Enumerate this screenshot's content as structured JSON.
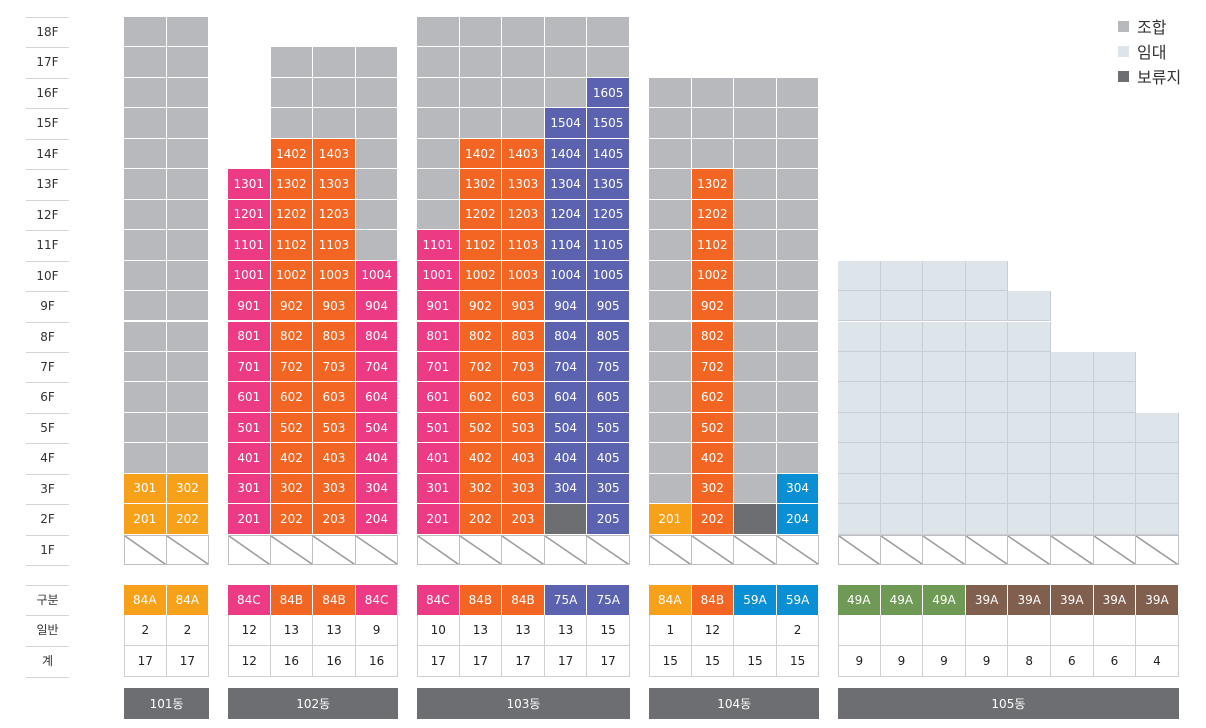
{
  "floors": [
    "18F",
    "17F",
    "16F",
    "15F",
    "14F",
    "13F",
    "12F",
    "11F",
    "10F",
    "9F",
    "8F",
    "7F",
    "6F",
    "5F",
    "4F",
    "3F",
    "2F",
    "1F"
  ],
  "row_labels": {
    "type": "구분",
    "general": "일반",
    "total": "계"
  },
  "legend": [
    {
      "label": "조합",
      "color": "#b8b9bd"
    },
    {
      "label": "임대",
      "color": "#dde4ea"
    },
    {
      "label": "보류지",
      "color": "#6d6e72"
    }
  ],
  "type_colors": {
    "84A": "#f7a11a",
    "84B": "#f26522",
    "84C": "#ec3a85",
    "75A": "#5b63b0",
    "59A": "#0a8ed4",
    "49A": "#6f9a56",
    "39A": "#805f4e",
    "union": "#b8b9bd",
    "lease": "#dde4ea",
    "reserve": "#6d6e72"
  },
  "buildings": [
    {
      "name": "101동",
      "columns": [
        {
          "top": 18,
          "cells": {
            "3": {
              "t": "84A",
              "label": "301"
            },
            "2": {
              "t": "84A",
              "label": "201"
            }
          },
          "default": "union",
          "type": "84A",
          "general": "2",
          "total": "17"
        },
        {
          "top": 18,
          "cells": {
            "3": {
              "t": "84A",
              "label": "302"
            },
            "2": {
              "t": "84A",
              "label": "202"
            }
          },
          "default": "union",
          "type": "84A",
          "general": "2",
          "total": "17"
        }
      ]
    },
    {
      "name": "102동",
      "columns": [
        {
          "top": 13,
          "default": "84C",
          "type": "84C",
          "general": "12",
          "total": "12",
          "labels": {
            "13": "1301",
            "12": "1201",
            "11": "1101",
            "10": "1001",
            "9": "901",
            "8": "801",
            "7": "701",
            "6": "601",
            "5": "501",
            "4": "401",
            "3": "301",
            "2": "201"
          }
        },
        {
          "top": 17,
          "default": "84B",
          "type": "84B",
          "general": "13",
          "total": "16",
          "union_floors": [
            15,
            16,
            17
          ],
          "labels": {
            "14": "1402",
            "13": "1302",
            "12": "1202",
            "11": "1102",
            "10": "1002",
            "9": "902",
            "8": "802",
            "7": "702",
            "6": "602",
            "5": "502",
            "4": "402",
            "3": "302",
            "2": "202"
          }
        },
        {
          "top": 17,
          "default": "84B",
          "type": "84B",
          "general": "13",
          "total": "16",
          "union_floors": [
            15,
            16,
            17
          ],
          "labels": {
            "14": "1403",
            "13": "1303",
            "12": "1203",
            "11": "1103",
            "10": "1003",
            "9": "903",
            "8": "803",
            "7": "703",
            "6": "603",
            "5": "503",
            "4": "403",
            "3": "303",
            "2": "203"
          }
        },
        {
          "top": 17,
          "default": "84C",
          "type": "84C",
          "general": "9",
          "total": "16",
          "union_floors": [
            11,
            12,
            13,
            14,
            15,
            16,
            17
          ],
          "labels": {
            "10": "1004",
            "9": "904",
            "8": "804",
            "7": "704",
            "6": "604",
            "5": "504",
            "4": "404",
            "3": "304",
            "2": "204"
          }
        }
      ]
    },
    {
      "name": "103동",
      "columns": [
        {
          "top": 18,
          "default": "84C",
          "type": "84C",
          "general": "10",
          "total": "17",
          "union_floors": [
            12,
            13,
            14,
            15,
            16,
            17,
            18
          ],
          "labels": {
            "11": "1101",
            "10": "1001",
            "9": "901",
            "8": "801",
            "7": "701",
            "6": "601",
            "5": "501",
            "4": "401",
            "3": "301",
            "2": "201"
          }
        },
        {
          "top": 18,
          "default": "84B",
          "type": "84B",
          "general": "13",
          "total": "17",
          "union_floors": [
            15,
            16,
            17,
            18
          ],
          "labels": {
            "14": "1402",
            "13": "1302",
            "12": "1202",
            "11": "1102",
            "10": "1002",
            "9": "902",
            "8": "802",
            "7": "702",
            "6": "602",
            "5": "502",
            "4": "402",
            "3": "302",
            "2": "202"
          }
        },
        {
          "top": 18,
          "default": "84B",
          "type": "84B",
          "general": "13",
          "total": "17",
          "union_floors": [
            15,
            16,
            17,
            18
          ],
          "labels": {
            "14": "1403",
            "13": "1303",
            "12": "1203",
            "11": "1103",
            "10": "1003",
            "9": "903",
            "8": "803",
            "7": "703",
            "6": "603",
            "5": "503",
            "4": "403",
            "3": "303",
            "2": "203"
          }
        },
        {
          "top": 18,
          "default": "75A",
          "type": "75A",
          "general": "13",
          "total": "17",
          "union_floors": [
            16,
            17,
            18
          ],
          "reserve_floors": [
            2
          ],
          "labels": {
            "15": "1504",
            "14": "1404",
            "13": "1304",
            "12": "1204",
            "11": "1104",
            "10": "1004",
            "9": "904",
            "8": "804",
            "7": "704",
            "6": "604",
            "5": "504",
            "4": "404",
            "3": "304"
          }
        },
        {
          "top": 18,
          "default": "75A",
          "type": "75A",
          "general": "15",
          "total": "17",
          "union_floors": [
            17,
            18
          ],
          "labels": {
            "16": "1605",
            "15": "1505",
            "14": "1405",
            "13": "1305",
            "12": "1205",
            "11": "1105",
            "10": "1005",
            "9": "905",
            "8": "805",
            "7": "705",
            "6": "605",
            "5": "505",
            "4": "405",
            "3": "305",
            "2": "205"
          }
        }
      ]
    },
    {
      "name": "104동",
      "columns": [
        {
          "top": 16,
          "default": "union",
          "type": "84A",
          "general": "1",
          "total": "15",
          "cells": {
            "2": {
              "t": "84A",
              "label": "201"
            }
          }
        },
        {
          "top": 16,
          "default": "84B",
          "type": "84B",
          "general": "12",
          "total": "15",
          "union_floors": [
            14,
            15,
            16
          ],
          "labels": {
            "13": "1302",
            "12": "1202",
            "11": "1102",
            "10": "1002",
            "9": "902",
            "8": "802",
            "7": "702",
            "6": "602",
            "5": "502",
            "4": "402",
            "3": "302",
            "2": "202"
          }
        },
        {
          "top": 16,
          "default": "union",
          "type": "59A",
          "general": "",
          "total": "15",
          "cells": {
            "2": {
              "t": "reserve",
              "label": ""
            }
          }
        },
        {
          "top": 16,
          "default": "union",
          "type": "59A",
          "general": "2",
          "total": "15",
          "cells": {
            "3": {
              "t": "59A",
              "label": "304"
            },
            "2": {
              "t": "59A",
              "label": "204"
            }
          }
        }
      ]
    },
    {
      "name": "105동",
      "columns": [
        {
          "top": 10,
          "default": "lease",
          "type": "49A",
          "general": "",
          "total": "9"
        },
        {
          "top": 10,
          "default": "lease",
          "type": "49A",
          "general": "",
          "total": "9"
        },
        {
          "top": 10,
          "default": "lease",
          "type": "49A",
          "general": "",
          "total": "9"
        },
        {
          "top": 10,
          "default": "lease",
          "type": "39A",
          "general": "",
          "total": "9"
        },
        {
          "top": 9,
          "default": "lease",
          "type": "39A",
          "general": "",
          "total": "8"
        },
        {
          "top": 7,
          "default": "lease",
          "type": "39A",
          "general": "",
          "total": "6"
        },
        {
          "top": 7,
          "default": "lease",
          "type": "39A",
          "general": "",
          "total": "6"
        },
        {
          "top": 5,
          "default": "lease",
          "type": "39A",
          "general": "",
          "total": "4"
        }
      ]
    }
  ]
}
